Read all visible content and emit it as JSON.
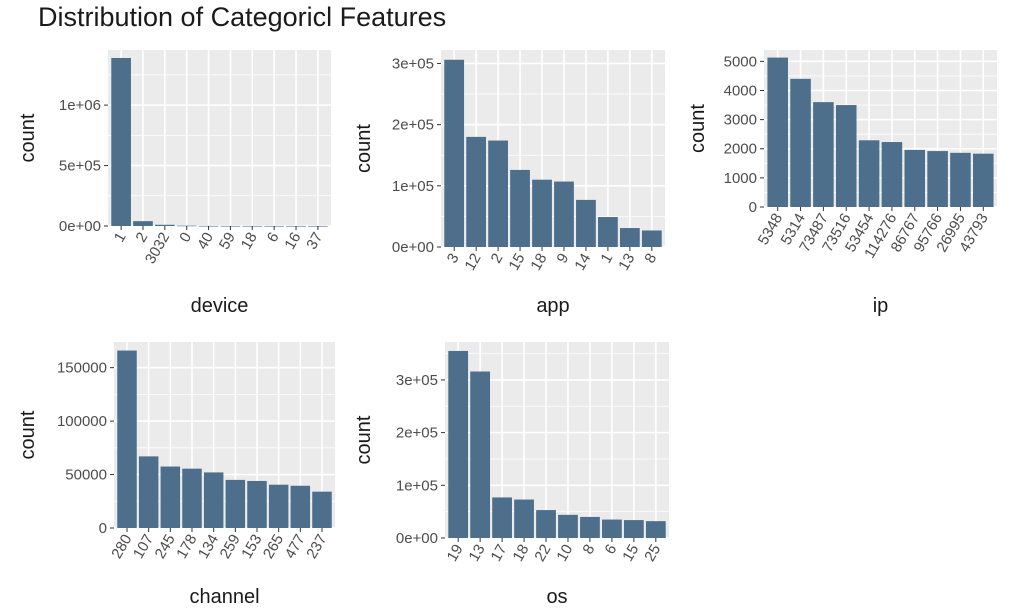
{
  "title": "Distribution of Categoricl Features",
  "colors": {
    "bar": "#4d6f8c",
    "panel": "#ebebeb",
    "grid": "#ffffff",
    "tick_text": "#4d4d4d",
    "axis_text": "#1a1a1a"
  },
  "chart_data": [
    {
      "type": "bar",
      "xlabel": "device",
      "ylabel": "count",
      "ylim": [
        0,
        1456000
      ],
      "yticks": [
        {
          "value": 0,
          "label": "0e+00"
        },
        {
          "value": 500000,
          "label": "5e+05"
        },
        {
          "value": 1000000,
          "label": "1e+06"
        }
      ],
      "categories": [
        "1",
        "2",
        "3032",
        "0",
        "40",
        "59",
        "18",
        "6",
        "16",
        "37"
      ],
      "values": [
        1390000,
        40000,
        10000,
        3000,
        800,
        600,
        500,
        400,
        300,
        250
      ]
    },
    {
      "type": "bar",
      "xlabel": "app",
      "ylabel": "count",
      "ylim": [
        0,
        322000
      ],
      "yticks": [
        {
          "value": 0,
          "label": "0e+00"
        },
        {
          "value": 100000,
          "label": "1e+05"
        },
        {
          "value": 200000,
          "label": "2e+05"
        },
        {
          "value": 300000,
          "label": "3e+05"
        }
      ],
      "categories": [
        "3",
        "12",
        "2",
        "15",
        "18",
        "9",
        "14",
        "1",
        "13",
        "8"
      ],
      "values": [
        306000,
        180000,
        174000,
        126000,
        110000,
        107000,
        77000,
        49000,
        31000,
        27000
      ]
    },
    {
      "type": "bar",
      "xlabel": "ip",
      "ylabel": "count",
      "ylim": [
        0,
        5390
      ],
      "yticks": [
        {
          "value": 0,
          "label": "0"
        },
        {
          "value": 1000,
          "label": "1000"
        },
        {
          "value": 2000,
          "label": "2000"
        },
        {
          "value": 3000,
          "label": "3000"
        },
        {
          "value": 4000,
          "label": "4000"
        },
        {
          "value": 5000,
          "label": "5000"
        }
      ],
      "categories": [
        "5348",
        "5314",
        "73487",
        "73516",
        "53454",
        "114276",
        "86767",
        "95766",
        "26995",
        "43793"
      ],
      "values": [
        5130,
        4400,
        3600,
        3500,
        2290,
        2230,
        1960,
        1920,
        1860,
        1830
      ]
    },
    {
      "type": "bar",
      "xlabel": "channel",
      "ylabel": "count",
      "ylim": [
        0,
        174000
      ],
      "yticks": [
        {
          "value": 0,
          "label": "0"
        },
        {
          "value": 50000,
          "label": "50000"
        },
        {
          "value": 100000,
          "label": "100000"
        },
        {
          "value": 150000,
          "label": "150000"
        }
      ],
      "categories": [
        "280",
        "107",
        "245",
        "178",
        "134",
        "259",
        "153",
        "265",
        "477",
        "237"
      ],
      "values": [
        166000,
        67000,
        57500,
        55500,
        52000,
        45000,
        44000,
        40500,
        39500,
        34000
      ]
    },
    {
      "type": "bar",
      "xlabel": "os",
      "ylabel": "count",
      "ylim": [
        0,
        372000
      ],
      "yticks": [
        {
          "value": 0,
          "label": "0e+00"
        },
        {
          "value": 100000,
          "label": "1e+05"
        },
        {
          "value": 200000,
          "label": "2e+05"
        },
        {
          "value": 300000,
          "label": "3e+05"
        }
      ],
      "categories": [
        "19",
        "13",
        "17",
        "18",
        "22",
        "10",
        "8",
        "6",
        "15",
        "25"
      ],
      "values": [
        355000,
        316000,
        77000,
        73000,
        53000,
        44000,
        40000,
        35000,
        34000,
        32000
      ]
    }
  ]
}
